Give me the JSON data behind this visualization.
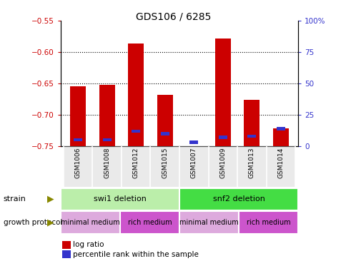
{
  "title": "GDS106 / 6285",
  "samples": [
    "GSM1006",
    "GSM1008",
    "GSM1012",
    "GSM1015",
    "GSM1007",
    "GSM1009",
    "GSM1013",
    "GSM1014"
  ],
  "log_ratios": [
    -0.654,
    -0.652,
    -0.586,
    -0.668,
    -0.752,
    -0.578,
    -0.676,
    -0.722
  ],
  "percentile_ranks": [
    5,
    5,
    12,
    10,
    3,
    7,
    8,
    14
  ],
  "ylim_left": [
    -0.75,
    -0.55
  ],
  "ylim_right": [
    0,
    100
  ],
  "yticks_left": [
    -0.75,
    -0.7,
    -0.65,
    -0.6,
    -0.55
  ],
  "yticks_right": [
    0,
    25,
    50,
    75,
    100
  ],
  "bar_bottom": -0.75,
  "bar_color": "#cc0000",
  "percentile_color": "#3333cc",
  "strain_labels": [
    "swi1 deletion",
    "snf2 deletion"
  ],
  "strain_ranges": [
    [
      0,
      3
    ],
    [
      4,
      7
    ]
  ],
  "strain_color_light": "#bbeeaa",
  "strain_color_bright": "#44dd44",
  "growth_labels": [
    "minimal medium",
    "rich medium",
    "minimal medium",
    "rich medium"
  ],
  "growth_ranges": [
    [
      0,
      1
    ],
    [
      2,
      3
    ],
    [
      4,
      5
    ],
    [
      6,
      7
    ]
  ],
  "growth_color_light": "#ddaadd",
  "growth_color_bright": "#cc55cc",
  "legend_items": [
    "log ratio",
    "percentile rank within the sample"
  ],
  "legend_colors": [
    "#cc0000",
    "#3333cc"
  ],
  "tick_color_left": "#cc0000",
  "tick_color_right": "#3333cc",
  "bar_width": 0.55,
  "arrow_color": "#888800"
}
